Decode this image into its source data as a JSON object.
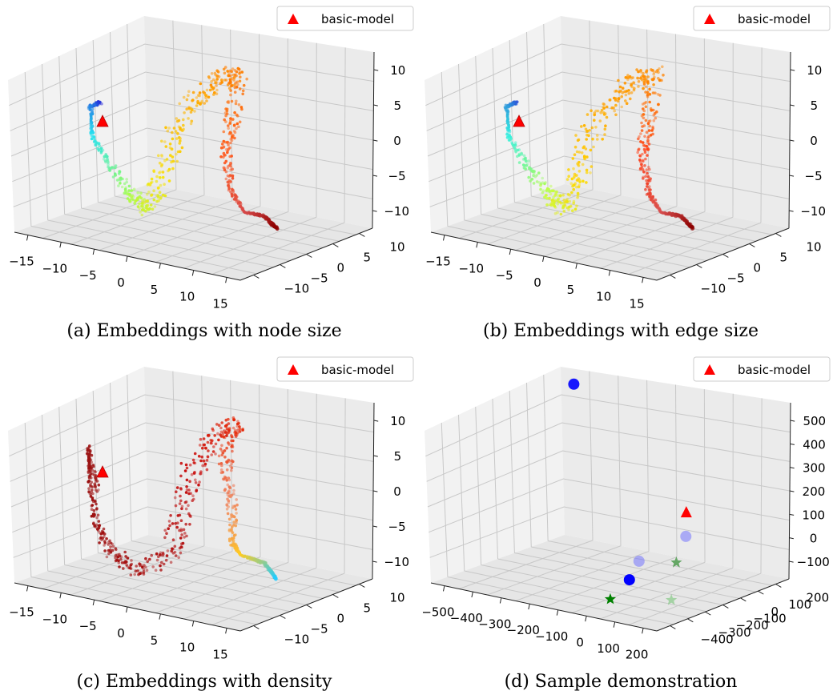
{
  "chart_data": [
    {
      "type": "scatter",
      "subtitle": "(a) Embeddings with node size",
      "legend": {
        "label": "basic-model",
        "marker": "triangle",
        "color": "#ff0000",
        "placement": "top-right"
      },
      "x_ticks": [
        "−15",
        "−10",
        "−5",
        "0",
        "5",
        "10",
        "15"
      ],
      "y_ticks": [
        "−10",
        "−5",
        "0",
        "5",
        "10"
      ],
      "z_ticks": [
        "−10",
        "−5",
        "0",
        "5",
        "10"
      ],
      "xlim": [
        -18,
        18
      ],
      "ylim": [
        -13,
        13
      ],
      "zlim": [
        -13,
        13
      ],
      "colormap": "jet",
      "grid": true,
      "basic_model": {
        "x": -15,
        "y": 0,
        "z": 5
      },
      "curve_colors": [
        "#2323d8",
        "#25e3f0",
        "#a8ff4a",
        "#f7e40d",
        "#ffaa00",
        "#ff7800",
        "#ff5a1e",
        "#d84a4a",
        "#8b0000"
      ]
    },
    {
      "type": "scatter",
      "subtitle": "(b) Embeddings with edge size",
      "legend": {
        "label": "basic-model",
        "marker": "triangle",
        "color": "#ff0000",
        "placement": "top-right"
      },
      "x_ticks": [
        "−15",
        "−10",
        "−5",
        "0",
        "5",
        "10",
        "15"
      ],
      "y_ticks": [
        "−10",
        "−5",
        "0",
        "5",
        "10"
      ],
      "z_ticks": [
        "−10",
        "−5",
        "0",
        "5",
        "10"
      ],
      "xlim": [
        -18,
        18
      ],
      "ylim": [
        -13,
        13
      ],
      "zlim": [
        -13,
        13
      ],
      "colormap": "jet",
      "grid": true,
      "basic_model": {
        "x": -15,
        "y": 0,
        "z": 5
      },
      "curve_colors": [
        "#2a4ad8",
        "#32f0e0",
        "#c8ff3a",
        "#ffd800",
        "#ffa000",
        "#ff8a00",
        "#ff3c14",
        "#d85050",
        "#8b0000"
      ]
    },
    {
      "type": "scatter",
      "subtitle": "(c) Embeddings with density",
      "legend": {
        "label": "basic-model",
        "marker": "triangle",
        "color": "#ff0000",
        "placement": "top-right"
      },
      "x_ticks": [
        "−15",
        "−10",
        "−5",
        "0",
        "5",
        "10",
        "15"
      ],
      "y_ticks": [
        "−10",
        "−5",
        "0",
        "5",
        "10"
      ],
      "z_ticks": [
        "−10",
        "−5",
        "0",
        "5",
        "10"
      ],
      "xlim": [
        -18,
        18
      ],
      "ylim": [
        -13,
        13
      ],
      "zlim": [
        -13,
        13
      ],
      "colormap": "jet",
      "grid": true,
      "basic_model": {
        "x": -15,
        "y": 0,
        "z": 5
      },
      "curve_colors": [
        "#a02020",
        "#9a1010",
        "#a01010",
        "#b01010",
        "#c81010",
        "#e62a0a",
        "#f08860",
        "#ffcc20",
        "#22ccff"
      ]
    },
    {
      "type": "scatter",
      "subtitle": "(d) Sample demonstration",
      "legend": {
        "label": "basic-model",
        "marker": "triangle",
        "color": "#ff0000",
        "placement": "top-right"
      },
      "x_ticks": [
        "−500",
        "−400",
        "−300",
        "−200",
        "−100",
        "0",
        "100",
        "200"
      ],
      "y_ticks": [
        "−400",
        "−300",
        "−200",
        "−100",
        "0",
        "100",
        "200"
      ],
      "z_ticks": [
        "−100",
        "0",
        "100",
        "200",
        "300",
        "400",
        "500"
      ],
      "xlim": [
        -550,
        250
      ],
      "ylim": [
        -450,
        250
      ],
      "zlim": [
        -150,
        550
      ],
      "grid": true,
      "points": [
        {
          "x": -450,
          "y": 150,
          "z": 500,
          "marker": "circle",
          "color": "#0000ff",
          "alpha": 0.9
        },
        {
          "x": 50,
          "y": 0,
          "z": 150,
          "marker": "triangle",
          "color": "#ff0000",
          "alpha": 1.0
        },
        {
          "x": 150,
          "y": -150,
          "z": 120,
          "marker": "circle",
          "color": "#6a6aff",
          "alpha": 0.5
        },
        {
          "x": 150,
          "y": -200,
          "z": 30,
          "marker": "star",
          "color": "#2e8b2e",
          "alpha": 0.7
        },
        {
          "x": 200,
          "y": -300,
          "z": -80,
          "marker": "star",
          "color": "#55bb55",
          "alpha": 0.45
        },
        {
          "x": -50,
          "y": -100,
          "z": -40,
          "marker": "circle",
          "color": "#6a6aff",
          "alpha": 0.5
        },
        {
          "x": -50,
          "y": -150,
          "z": -100,
          "marker": "circle",
          "color": "#0000ff",
          "alpha": 1.0
        },
        {
          "x": -50,
          "y": -250,
          "z": -150,
          "marker": "star",
          "color": "#008000",
          "alpha": 1.0
        }
      ]
    }
  ]
}
